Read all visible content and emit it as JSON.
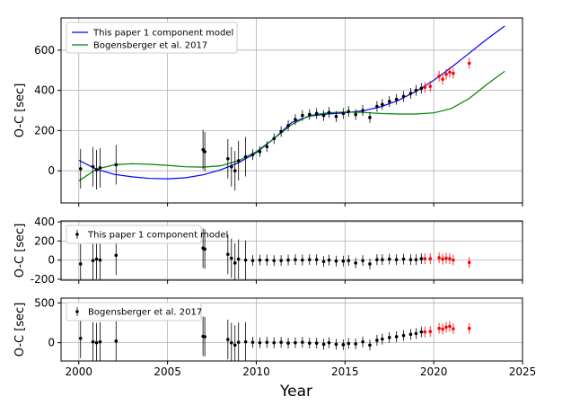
{
  "chart_data": [
    {
      "type": "line",
      "panel": "top",
      "ylabel": "O-C [sec]",
      "xlim": [
        1999,
        2025
      ],
      "ylim": [
        -160,
        760
      ],
      "xticks": [
        "2000",
        "2005",
        "2010",
        "2015",
        "2020",
        "2025"
      ],
      "yticks": [
        0,
        200,
        400,
        600
      ],
      "grid": true,
      "legend_loc": "upper-left",
      "series": [
        {
          "name": "This paper 1 component model",
          "color": "#0000ff",
          "x": [
            2000.0,
            2001.0,
            2002.0,
            2003.0,
            2004.0,
            2005.0,
            2006.0,
            2007.0,
            2008.0,
            2009.0,
            2010.0,
            2011.0,
            2012.0,
            2013.0,
            2014.0,
            2015.0,
            2016.0,
            2017.0,
            2018.0,
            2019.0,
            2020.0,
            2021.0,
            2022.0,
            2023.0,
            2024.0
          ],
          "y": [
            52,
            8,
            -18,
            -30,
            -38,
            -40,
            -35,
            -20,
            5,
            40,
            90,
            160,
            240,
            272,
            282,
            288,
            298,
            318,
            350,
            395,
            450,
            515,
            585,
            655,
            720
          ]
        },
        {
          "name": "Bogensberger et al. 2017",
          "color": "#008000",
          "x": [
            2000.0,
            2001.0,
            2002.0,
            2003.0,
            2004.0,
            2005.0,
            2006.0,
            2007.0,
            2008.0,
            2009.0,
            2010.0,
            2011.0,
            2012.0,
            2013.0,
            2014.0,
            2015.0,
            2016.0,
            2017.0,
            2018.0,
            2019.0,
            2020.0,
            2021.0,
            2022.0,
            2023.0,
            2024.0
          ],
          "y": [
            -50,
            8,
            30,
            35,
            32,
            27,
            20,
            18,
            25,
            50,
            95,
            160,
            230,
            275,
            288,
            292,
            290,
            285,
            282,
            282,
            288,
            310,
            360,
            430,
            495
          ]
        }
      ],
      "points": {
        "color": "#000000",
        "x": [
          2000.1,
          2000.8,
          2001.0,
          2001.2,
          2002.1,
          2007.0,
          2007.1,
          2008.4,
          2008.6,
          2008.8,
          2009.0,
          2009.4,
          2009.8,
          2010.2,
          2010.6,
          2011.0,
          2011.4,
          2011.8,
          2012.2,
          2012.6,
          2013.0,
          2013.4,
          2013.8,
          2014.1,
          2014.5,
          2014.9,
          2015.2,
          2015.6,
          2016.0,
          2016.4,
          2016.8,
          2017.1,
          2017.5,
          2017.9,
          2018.3,
          2018.7,
          2019.0,
          2019.3
        ],
        "y": [
          10,
          20,
          5,
          15,
          30,
          105,
          95,
          60,
          20,
          0,
          50,
          70,
          80,
          95,
          120,
          160,
          195,
          225,
          255,
          275,
          280,
          285,
          275,
          290,
          270,
          285,
          295,
          280,
          300,
          265,
          320,
          330,
          345,
          355,
          370,
          385,
          400,
          410
        ]
      },
      "red_points": {
        "color": "#ff0000",
        "x": [
          2019.5,
          2019.8,
          2020.3,
          2020.5,
          2020.7,
          2020.9,
          2021.1,
          2022.0
        ],
        "y": [
          415,
          420,
          470,
          455,
          480,
          490,
          485,
          535
        ]
      }
    },
    {
      "type": "scatter",
      "panel": "middle",
      "ylabel": "O-C [sec]",
      "xlim": [
        1999,
        2025
      ],
      "ylim": [
        -210,
        410
      ],
      "yticks": [
        -200,
        0,
        200,
        400
      ],
      "grid": true,
      "legend_loc": "upper-left",
      "series_name": "This paper 1 component model",
      "points": {
        "color": "#000000",
        "x": [
          2000.1,
          2000.8,
          2001.0,
          2001.2,
          2002.1,
          2007.0,
          2007.1,
          2008.4,
          2008.6,
          2008.8,
          2009.0,
          2009.4,
          2009.8,
          2010.2,
          2010.6,
          2011.0,
          2011.4,
          2011.8,
          2012.2,
          2012.6,
          2013.0,
          2013.4,
          2013.8,
          2014.1,
          2014.5,
          2014.9,
          2015.2,
          2015.6,
          2016.0,
          2016.4,
          2016.8,
          2017.1,
          2017.5,
          2017.9,
          2018.3,
          2018.7,
          2019.0,
          2019.3
        ],
        "y": [
          -40,
          -5,
          10,
          0,
          50,
          125,
          115,
          60,
          20,
          -30,
          10,
          0,
          -5,
          0,
          0,
          -5,
          -5,
          0,
          5,
          0,
          5,
          5,
          -15,
          0,
          -10,
          -10,
          -5,
          -30,
          -5,
          -40,
          5,
          5,
          10,
          5,
          10,
          5,
          5,
          15
        ]
      },
      "red_points": {
        "color": "#ff0000",
        "x": [
          2019.5,
          2019.8,
          2020.3,
          2020.5,
          2020.7,
          2020.9,
          2021.1,
          2022.0
        ],
        "y": [
          15,
          15,
          25,
          10,
          20,
          15,
          0,
          -25
        ]
      }
    },
    {
      "type": "scatter",
      "panel": "bottom",
      "ylabel": "O-C [sec]",
      "xlabel": "Year",
      "xlim": [
        1999,
        2025
      ],
      "ylim": [
        -230,
        560
      ],
      "xticks": [
        "2000",
        "2005",
        "2010",
        "2015",
        "2020",
        "2025"
      ],
      "yticks": [
        0,
        500
      ],
      "grid": true,
      "legend_loc": "upper-left",
      "series_name": "Bogensberger et al. 2017",
      "points": {
        "color": "#000000",
        "x": [
          2000.1,
          2000.8,
          2001.0,
          2001.2,
          2002.1,
          2007.0,
          2007.1,
          2008.4,
          2008.6,
          2008.8,
          2009.0,
          2009.4,
          2009.8,
          2010.2,
          2010.6,
          2011.0,
          2011.4,
          2011.8,
          2012.2,
          2012.6,
          2013.0,
          2013.4,
          2013.8,
          2014.1,
          2014.5,
          2014.9,
          2015.2,
          2015.6,
          2016.0,
          2016.4,
          2016.8,
          2017.1,
          2017.5,
          2017.9,
          2018.3,
          2018.7,
          2019.0,
          2019.3
        ],
        "y": [
          55,
          10,
          0,
          10,
          20,
          80,
          75,
          40,
          0,
          -30,
          5,
          10,
          5,
          0,
          5,
          0,
          5,
          -5,
          0,
          5,
          -5,
          -5,
          -20,
          0,
          -20,
          -25,
          -10,
          -15,
          10,
          -30,
          30,
          45,
          65,
          75,
          90,
          105,
          115,
          135
        ]
      },
      "red_points": {
        "color": "#ff0000",
        "x": [
          2019.5,
          2019.8,
          2020.3,
          2020.5,
          2020.7,
          2020.9,
          2021.1,
          2022.0
        ],
        "y": [
          135,
          140,
          180,
          170,
          195,
          205,
          175,
          180
        ]
      }
    }
  ]
}
